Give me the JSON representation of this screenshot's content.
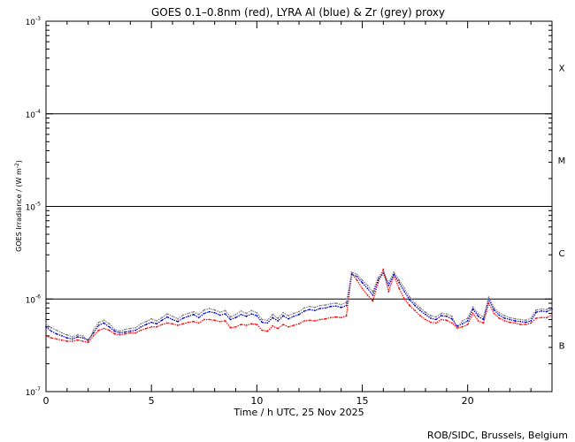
{
  "chart_data": {
    "type": "line",
    "title": "GOES 0.1–0.8nm (red), LYRA Al (blue) & Zr (grey) proxy",
    "xlabel": "Time / h UTC, 25 Nov 2025",
    "ylabel": "GOES Irradiance / (W m",
    "ylabel_sup": "-2",
    "ylabel_close": ")",
    "credit": "ROB/SIDC, Brussels, Belgium",
    "x_scale": "linear",
    "y_scale": "log",
    "xlim": [
      0,
      24
    ],
    "ylim": [
      1e-07,
      0.001
    ],
    "x_ticks": [
      0,
      5,
      10,
      15,
      20
    ],
    "x_tick_labels": [
      "0",
      "5",
      "10",
      "15",
      "20"
    ],
    "y_ticks": [
      {
        "base": "10",
        "exp": "-3",
        "value": 0.001
      },
      {
        "base": "10",
        "exp": "-4",
        "value": 0.0001
      },
      {
        "base": "10",
        "exp": "-5",
        "value": 1e-05
      },
      {
        "base": "10",
        "exp": "-6",
        "value": 1e-06
      },
      {
        "base": "10",
        "exp": "-7",
        "value": 1e-07
      }
    ],
    "flare_class_lines": [
      0.0001,
      1e-05,
      1e-06
    ],
    "flare_classes": [
      {
        "label": "X",
        "value": 0.000316
      },
      {
        "label": "M",
        "value": 3.16e-05
      },
      {
        "label": "C",
        "value": 3.16e-06
      },
      {
        "label": "B",
        "value": 3.16e-07
      }
    ],
    "series": [
      {
        "color": "#ff0000",
        "x": [
          0,
          0.25,
          0.5,
          0.75,
          1.0,
          1.25,
          1.5,
          1.75,
          2.0,
          2.25,
          2.5,
          2.75,
          3.0,
          3.25,
          3.5,
          3.75,
          4.0,
          4.25,
          4.5,
          4.75,
          5.0,
          5.25,
          5.5,
          5.75,
          6.0,
          6.25,
          6.5,
          6.75,
          7.0,
          7.25,
          7.5,
          7.75,
          8.0,
          8.25,
          8.5,
          8.75,
          9.0,
          9.25,
          9.5,
          9.75,
          10.0,
          10.25,
          10.5,
          10.75,
          11.0,
          11.25,
          11.5,
          11.75,
          12.0,
          12.25,
          12.5,
          12.75,
          13.0,
          13.25,
          13.5,
          13.75,
          14.0,
          14.25,
          14.5,
          14.75,
          15.0,
          15.25,
          15.5,
          15.75,
          16.0,
          16.25,
          16.5,
          16.75,
          17.0,
          17.25,
          17.5,
          17.75,
          18.0,
          18.25,
          18.5,
          18.75,
          19.0,
          19.25,
          19.5,
          19.75,
          20.0,
          20.25,
          20.5,
          20.75,
          21.0,
          21.25,
          21.5,
          21.75,
          22.0,
          22.25,
          22.5,
          22.75,
          23.0,
          23.25,
          23.5,
          23.75,
          24.0
        ],
        "y": [
          4e-07,
          3.8e-07,
          3.7e-07,
          3.6e-07,
          3.5e-07,
          3.5e-07,
          3.6e-07,
          3.5e-07,
          3.4e-07,
          4e-07,
          4.6e-07,
          4.8e-07,
          4.6e-07,
          4.2e-07,
          4.1e-07,
          4.2e-07,
          4.3e-07,
          4.3e-07,
          4.6e-07,
          4.8e-07,
          5e-07,
          5e-07,
          5.3e-07,
          5.5e-07,
          5.4e-07,
          5.2e-07,
          5.4e-07,
          5.6e-07,
          5.7e-07,
          5.5e-07,
          6e-07,
          6e-07,
          5.9e-07,
          5.7e-07,
          5.8e-07,
          4.9e-07,
          5e-07,
          5.3e-07,
          5.2e-07,
          5.4e-07,
          5.3e-07,
          4.6e-07,
          4.5e-07,
          5.1e-07,
          4.8e-07,
          5.3e-07,
          5e-07,
          5.2e-07,
          5.4e-07,
          5.8e-07,
          5.9e-07,
          5.8e-07,
          6e-07,
          6.1e-07,
          6.3e-07,
          6.4e-07,
          6.3e-07,
          6.6e-07,
          1.9e-06,
          1.6e-06,
          1.3e-06,
          1.1e-06,
          9.5e-07,
          1.5e-06,
          2.1e-06,
          1.2e-06,
          1.8e-06,
          1.3e-06,
          1e-06,
          8.5e-07,
          7.5e-07,
          6.6e-07,
          6e-07,
          5.6e-07,
          5.5e-07,
          6e-07,
          5.9e-07,
          5.5e-07,
          4.9e-07,
          5e-07,
          5.3e-07,
          7e-07,
          5.8e-07,
          5.5e-07,
          9e-07,
          7e-07,
          6.2e-07,
          5.8e-07,
          5.6e-07,
          5.5e-07,
          5.3e-07,
          5.3e-07,
          5.5e-07,
          6.2e-07,
          6.3e-07,
          6.3e-07,
          6.8e-07
        ]
      },
      {
        "color": "#0000cc",
        "x": [
          0,
          0.25,
          0.5,
          0.75,
          1.0,
          1.25,
          1.5,
          1.75,
          2.0,
          2.25,
          2.5,
          2.75,
          3.0,
          3.25,
          3.5,
          3.75,
          4.0,
          4.25,
          4.5,
          4.75,
          5.0,
          5.25,
          5.5,
          5.75,
          6.0,
          6.25,
          6.5,
          6.75,
          7.0,
          7.25,
          7.5,
          7.75,
          8.0,
          8.25,
          8.5,
          8.75,
          9.0,
          9.25,
          9.5,
          9.75,
          10.0,
          10.25,
          10.5,
          10.75,
          11.0,
          11.25,
          11.5,
          11.75,
          12.0,
          12.25,
          12.5,
          12.75,
          13.0,
          13.25,
          13.5,
          13.75,
          14.0,
          14.25,
          14.5,
          14.75,
          15.0,
          15.25,
          15.5,
          15.75,
          16.0,
          16.25,
          16.5,
          16.75,
          17.0,
          17.25,
          17.5,
          17.75,
          18.0,
          18.25,
          18.5,
          18.75,
          19.0,
          19.25,
          19.5,
          19.75,
          20.0,
          20.25,
          20.5,
          20.75,
          21.0,
          21.25,
          21.5,
          21.75,
          22.0,
          22.25,
          22.5,
          22.75,
          23.0,
          23.25,
          23.5,
          23.75,
          24.0
        ],
        "y": [
          5e-07,
          4.5e-07,
          4.2e-07,
          4e-07,
          3.8e-07,
          3.7e-07,
          3.9e-07,
          3.8e-07,
          3.6e-07,
          4.3e-07,
          5.2e-07,
          5.5e-07,
          5e-07,
          4.5e-07,
          4.3e-07,
          4.4e-07,
          4.5e-07,
          4.6e-07,
          5e-07,
          5.3e-07,
          5.6e-07,
          5.4e-07,
          5.9e-07,
          6.4e-07,
          6e-07,
          5.7e-07,
          6.2e-07,
          6.5e-07,
          6.8e-07,
          6.3e-07,
          7e-07,
          7.3e-07,
          7.1e-07,
          6.7e-07,
          6.9e-07,
          6e-07,
          6.3e-07,
          6.8e-07,
          6.5e-07,
          6.9e-07,
          6.6e-07,
          5.6e-07,
          5.5e-07,
          6.3e-07,
          5.8e-07,
          6.6e-07,
          6.1e-07,
          6.5e-07,
          6.8e-07,
          7.4e-07,
          7.7e-07,
          7.5e-07,
          7.9e-07,
          8e-07,
          8.3e-07,
          8.4e-07,
          8.1e-07,
          8.5e-07,
          1.85e-06,
          1.75e-06,
          1.5e-06,
          1.3e-06,
          1.1e-06,
          1.6e-06,
          1.9e-06,
          1.4e-06,
          1.85e-06,
          1.5e-06,
          1.2e-06,
          9.8e-07,
          8.5e-07,
          7.5e-07,
          6.8e-07,
          6.2e-07,
          6e-07,
          6.6e-07,
          6.5e-07,
          6.1e-07,
          5.1e-07,
          5.4e-07,
          5.8e-07,
          7.8e-07,
          6.5e-07,
          6e-07,
          1e-06,
          7.6e-07,
          6.7e-07,
          6.2e-07,
          6e-07,
          5.8e-07,
          5.7e-07,
          5.6e-07,
          5.8e-07,
          7.2e-07,
          7.4e-07,
          7.3e-07,
          7.8e-07
        ]
      },
      {
        "color": "#808080",
        "x": [
          0,
          0.25,
          0.5,
          0.75,
          1.0,
          1.25,
          1.5,
          1.75,
          2.0,
          2.25,
          2.5,
          2.75,
          3.0,
          3.25,
          3.5,
          3.75,
          4.0,
          4.25,
          4.5,
          4.75,
          5.0,
          5.25,
          5.5,
          5.75,
          6.0,
          6.25,
          6.5,
          6.75,
          7.0,
          7.25,
          7.5,
          7.75,
          8.0,
          8.25,
          8.5,
          8.75,
          9.0,
          9.25,
          9.5,
          9.75,
          10.0,
          10.25,
          10.5,
          10.75,
          11.0,
          11.25,
          11.5,
          11.75,
          12.0,
          12.25,
          12.5,
          12.75,
          13.0,
          13.25,
          13.5,
          13.75,
          14.0,
          14.25,
          14.5,
          14.75,
          15.0,
          15.25,
          15.5,
          15.75,
          16.0,
          16.25,
          16.5,
          16.75,
          17.0,
          17.25,
          17.5,
          17.75,
          18.0,
          18.25,
          18.5,
          18.75,
          19.0,
          19.25,
          19.5,
          19.75,
          20.0,
          20.25,
          20.5,
          20.75,
          21.0,
          21.25,
          21.5,
          21.75,
          22.0,
          22.25,
          22.5,
          22.75,
          23.0,
          23.25,
          23.5,
          23.75,
          24.0
        ],
        "y": [
          5.4e-07,
          4.9e-07,
          4.6e-07,
          4.3e-07,
          4.1e-07,
          3.9e-07,
          4.1e-07,
          4e-07,
          3.5e-07,
          4.6e-07,
          5.6e-07,
          5.9e-07,
          5.4e-07,
          4.7e-07,
          4.5e-07,
          4.7e-07,
          4.8e-07,
          4.9e-07,
          5.4e-07,
          5.7e-07,
          6.1e-07,
          5.8e-07,
          6.3e-07,
          6.9e-07,
          6.5e-07,
          6.1e-07,
          6.7e-07,
          7e-07,
          7.3e-07,
          6.8e-07,
          7.6e-07,
          7.9e-07,
          7.6e-07,
          7.2e-07,
          7.5e-07,
          6.4e-07,
          6.8e-07,
          7.4e-07,
          7e-07,
          7.5e-07,
          7.1e-07,
          6e-07,
          5.9e-07,
          6.8e-07,
          6.2e-07,
          7.1e-07,
          6.6e-07,
          7e-07,
          7.3e-07,
          8e-07,
          8.3e-07,
          8.1e-07,
          8.5e-07,
          8.6e-07,
          8.9e-07,
          9e-07,
          8.7e-07,
          9.2e-07,
          1.95e-06,
          1.85e-06,
          1.6e-06,
          1.4e-06,
          1.2e-06,
          1.7e-06,
          2e-06,
          1.5e-06,
          1.95e-06,
          1.6e-06,
          1.3e-06,
          1.05e-06,
          9e-07,
          8e-07,
          7.2e-07,
          6.6e-07,
          6.4e-07,
          7e-07,
          6.9e-07,
          6.5e-07,
          4.8e-07,
          5.8e-07,
          6.2e-07,
          8.2e-07,
          6.9e-07,
          6.4e-07,
          1.05e-06,
          8e-07,
          7.1e-07,
          6.6e-07,
          6.3e-07,
          6.1e-07,
          6e-07,
          5.9e-07,
          6.2e-07,
          7.6e-07,
          7.8e-07,
          7.7e-07,
          8.2e-07
        ]
      }
    ]
  }
}
